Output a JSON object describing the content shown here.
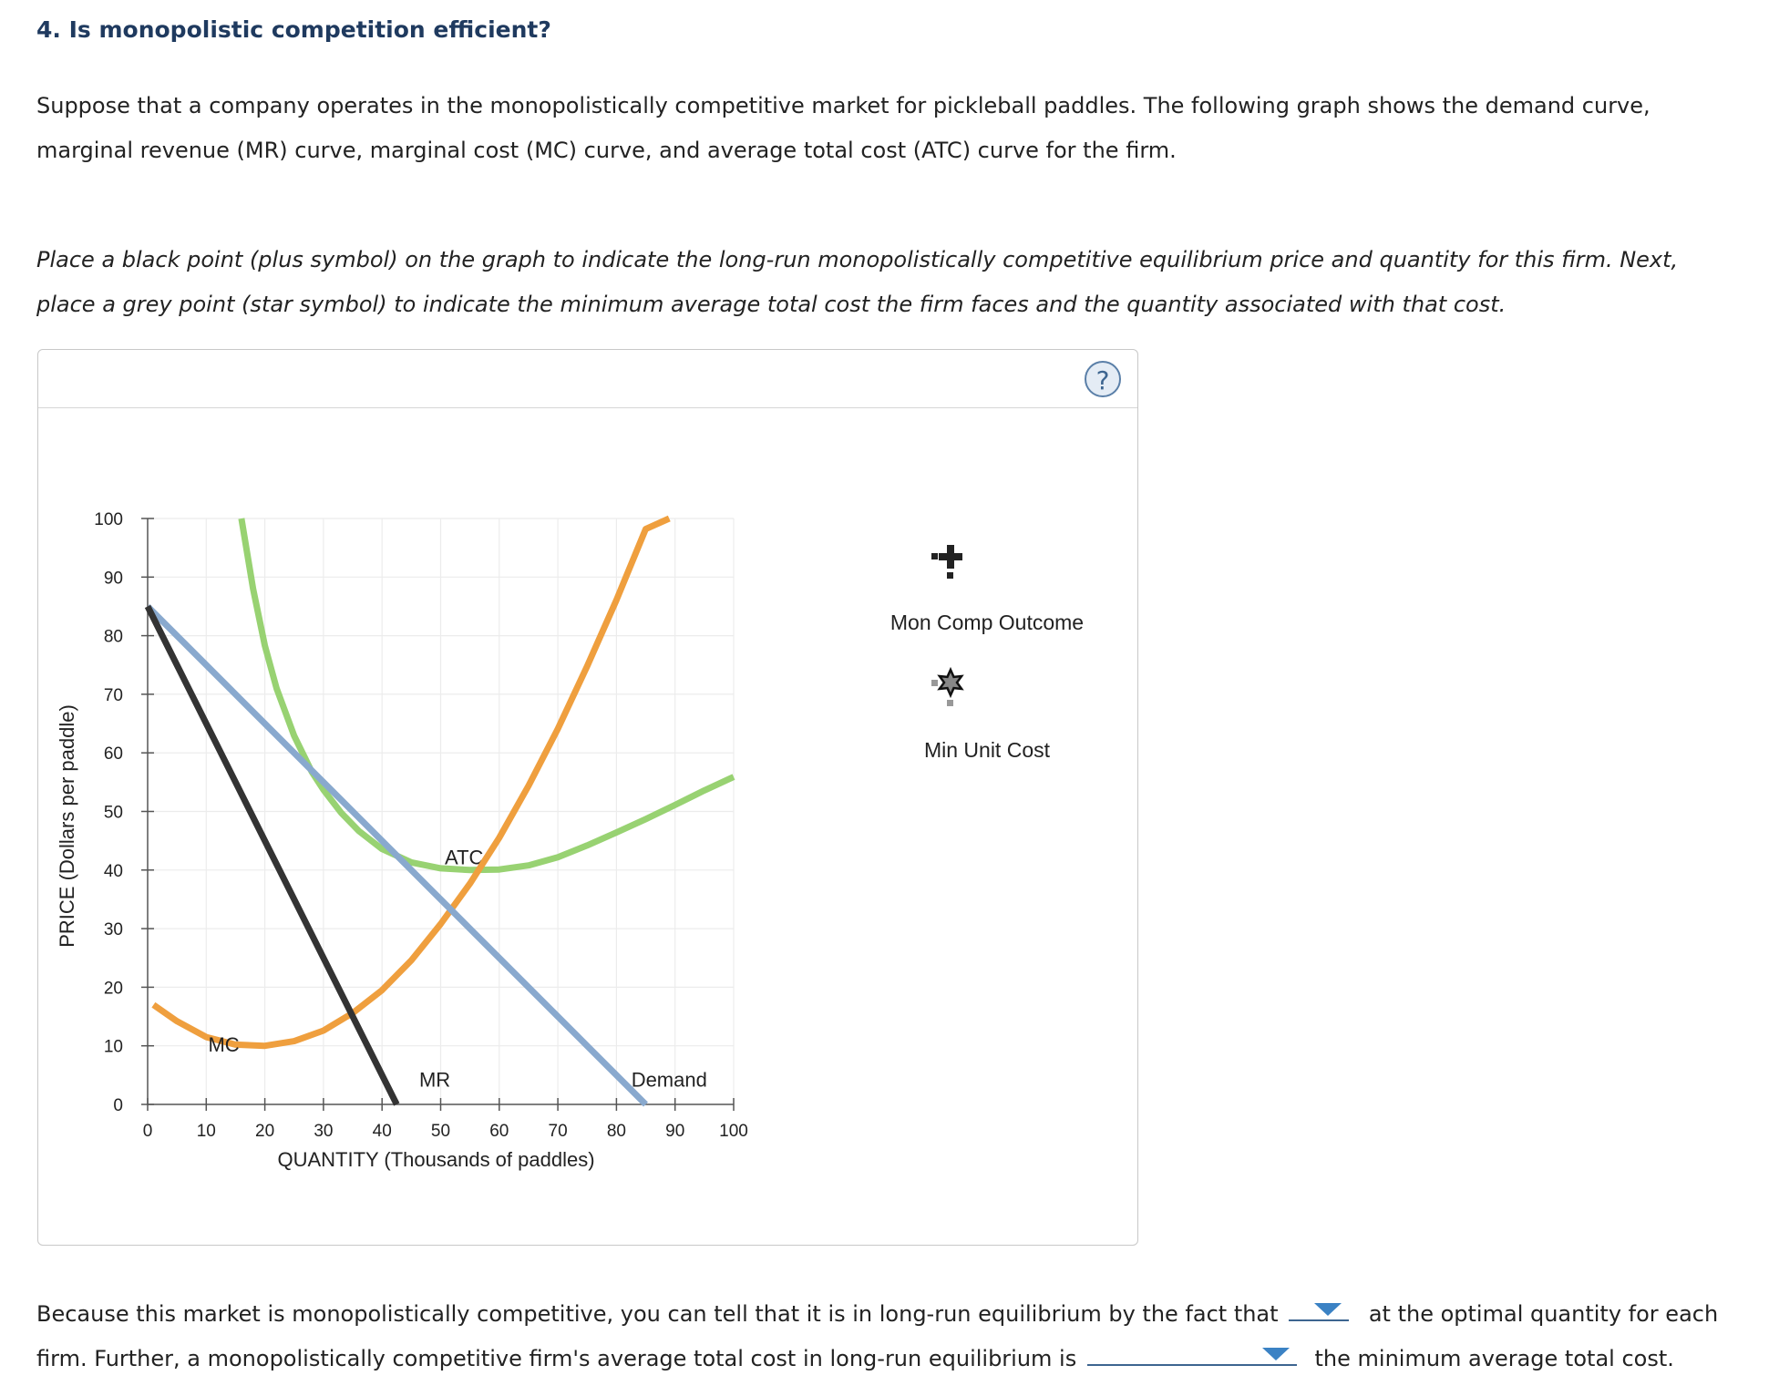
{
  "question": {
    "title": "4. Is monopolistic competition efficient?",
    "intro_line1": "Suppose that a company operates in the monopolistically competitive market for pickleball paddles. The following graph shows the demand curve,",
    "intro_line2": "marginal revenue (MR) curve, marginal cost (MC) curve, and average total cost (ATC) curve for the firm.",
    "instr_line1": "Place a black point (plus symbol) on the graph to indicate the long-run monopolistically competitive equilibrium price and quantity for this firm. Next,",
    "instr_line2": "place a grey point (star symbol) to indicate the minimum average total cost the firm faces and the quantity associated with that cost."
  },
  "panel": {
    "help_label": "?"
  },
  "palette": [
    {
      "label": "Mon Comp Outcome",
      "icon": "plus-icon",
      "color": "#222222"
    },
    {
      "label": "Min Unit Cost",
      "icon": "star-icon",
      "color": "#888888"
    }
  ],
  "bottom": {
    "line1_before": "Because this market is monopolistically competitive, you can tell that it is in long-run equilibrium by the fact that",
    "line1_after": "at the optimal quantity for each",
    "line2_before": "firm. Further, a monopolistically competitive firm's average total cost in long-run equilibrium is",
    "line2_after": "the minimum average total cost.",
    "dropdown1_value": "",
    "dropdown2_value": ""
  },
  "chart_data": {
    "type": "line",
    "xlabel": "QUANTITY (Thousands of paddles)",
    "ylabel": "PRICE (Dollars per paddle)",
    "xlim": [
      0,
      100
    ],
    "ylim": [
      0,
      100
    ],
    "xticks": [
      0,
      10,
      20,
      30,
      40,
      50,
      60,
      70,
      80,
      90,
      100
    ],
    "yticks": [
      0,
      10,
      20,
      30,
      40,
      50,
      60,
      70,
      80,
      90,
      100
    ],
    "grid": true,
    "series": [
      {
        "name": "Demand",
        "color": "#89a9ce",
        "x": [
          0,
          85
        ],
        "y": [
          85,
          0
        ],
        "label_at": [
          89,
          3
        ]
      },
      {
        "name": "MR",
        "color": "#333333",
        "x": [
          0,
          42.5
        ],
        "y": [
          85,
          0
        ],
        "label_at": [
          49,
          3
        ]
      },
      {
        "name": "MC",
        "color": "#ef9f3e",
        "x": [
          1,
          5,
          10,
          15,
          20,
          25,
          30,
          35,
          40,
          45,
          50,
          55,
          60,
          65,
          70,
          75,
          80,
          85,
          89
        ],
        "y": [
          17,
          14.2,
          11.5,
          10.2,
          10,
          10.8,
          12.6,
          15.6,
          19.5,
          24.6,
          30.8,
          37.7,
          45.5,
          54.4,
          64.1,
          74.8,
          86.1,
          98.2,
          100
        ],
        "label_at": [
          13,
          9
        ]
      },
      {
        "name": "ATC",
        "color": "#98d272",
        "x": [
          16,
          18,
          20,
          22,
          25,
          28,
          30,
          33,
          36,
          40,
          45,
          50,
          55,
          60,
          65,
          70,
          75,
          80,
          85,
          90,
          95,
          100
        ],
        "y": [
          100,
          88,
          78.3,
          71,
          62.9,
          56.8,
          53.7,
          49.8,
          46.7,
          43.6,
          41.3,
          40.3,
          40,
          40.1,
          40.8,
          42.2,
          44.2,
          46.4,
          48.7,
          51.1,
          53.6,
          55.9
        ],
        "label_at": [
          54,
          41
        ]
      }
    ]
  }
}
